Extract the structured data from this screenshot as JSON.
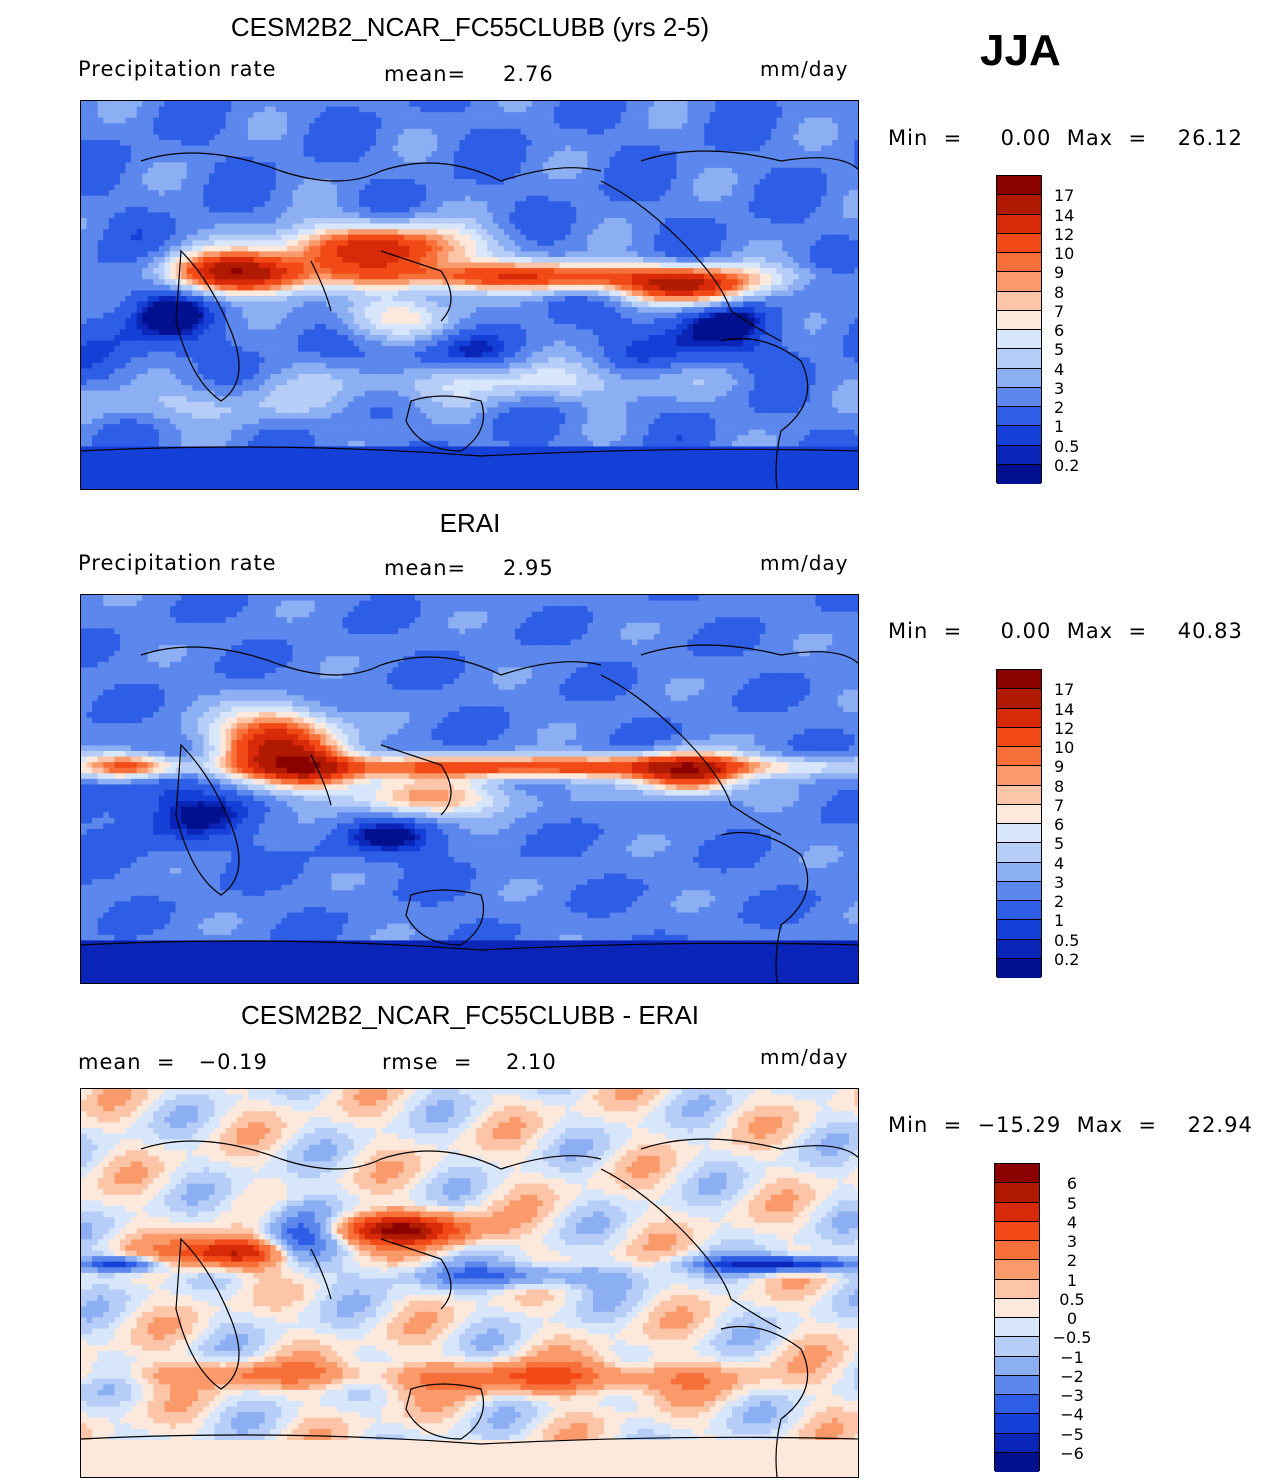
{
  "season": "JJA",
  "palette": {
    "dark_navy": "#00008b",
    "mid_blue": "#1a4be0",
    "light_blue": "#b5cdf7",
    "pale": "#fde7d9",
    "orange": "#f0641e",
    "dark_red": "#8b0000"
  },
  "panels": [
    {
      "title": "CESM2B2_NCAR_FC55CLUBB (yrs 2-5)",
      "left_label": "Precipitation  rate",
      "stat1_label": "mean=",
      "stat1_value": "2.76",
      "units": "mm/day",
      "minmax": "Min  =     0.00  Max  =    26.12",
      "field": "model"
    },
    {
      "title": "ERAI",
      "left_label": "Precipitation  rate",
      "stat1_label": "mean=",
      "stat1_value": "2.95",
      "units": "mm/day",
      "minmax": "Min  =     0.00  Max  =    40.83",
      "field": "obs"
    },
    {
      "title": "CESM2B2_NCAR_FC55CLUBB - ERAI",
      "left_label": "mean  =   −0.19",
      "stat1_label": "rmse  =",
      "stat1_value": "2.10",
      "units": "mm/day",
      "minmax": "Min  =  −15.29  Max  =    22.94",
      "field": "diff"
    }
  ],
  "chart_data": [
    {
      "type": "heatmap",
      "title": "CESM2B2_NCAR_FC55CLUBB (yrs 2-5)",
      "variable": "Precipitation rate",
      "units": "mm/day",
      "mean": 2.76,
      "min": 0.0,
      "max": 26.12,
      "colorbar_levels": [
        "17",
        "14",
        "12",
        "10",
        "9",
        "8",
        "7",
        "6",
        "5",
        "4",
        "3",
        "2",
        "1",
        "0.5",
        "0.2"
      ],
      "colorbar_colors": [
        "#8b0000",
        "#b01a00",
        "#d82a08",
        "#f24a16",
        "#f7703a",
        "#fa9a6a",
        "#fcc5a8",
        "#fde9db",
        "#d7e6fb",
        "#b5cdf7",
        "#8caef2",
        "#5c87ec",
        "#2f5ee6",
        "#1540d8",
        "#0a25b8",
        "#00108f"
      ]
    },
    {
      "type": "heatmap",
      "title": "ERAI",
      "variable": "Precipitation rate",
      "units": "mm/day",
      "mean": 2.95,
      "min": 0.0,
      "max": 40.83,
      "colorbar_levels": [
        "17",
        "14",
        "12",
        "10",
        "9",
        "8",
        "7",
        "6",
        "5",
        "4",
        "3",
        "2",
        "1",
        "0.5",
        "0.2"
      ],
      "colorbar_colors": [
        "#8b0000",
        "#b01a00",
        "#d82a08",
        "#f24a16",
        "#f7703a",
        "#fa9a6a",
        "#fcc5a8",
        "#fde9db",
        "#d7e6fb",
        "#b5cdf7",
        "#8caef2",
        "#5c87ec",
        "#2f5ee6",
        "#1540d8",
        "#0a25b8",
        "#00108f"
      ]
    },
    {
      "type": "heatmap",
      "title": "CESM2B2_NCAR_FC55CLUBB - ERAI",
      "units": "mm/day",
      "mean": -0.19,
      "rmse": 2.1,
      "min": -15.29,
      "max": 22.94,
      "colorbar_levels": [
        "6",
        "5",
        "4",
        "3",
        "2",
        "1",
        "0.5",
        "0",
        "−0.5",
        "−1",
        "−2",
        "−3",
        "−4",
        "−5",
        "−6"
      ],
      "colorbar_colors": [
        "#8b0000",
        "#b01a00",
        "#d82a08",
        "#f24a16",
        "#f7703a",
        "#fa9a6a",
        "#fcc5a8",
        "#fde9db",
        "#d7e6fb",
        "#b5cdf7",
        "#8caef2",
        "#5c87ec",
        "#2f5ee6",
        "#1540d8",
        "#0a25b8",
        "#00108f"
      ]
    }
  ]
}
